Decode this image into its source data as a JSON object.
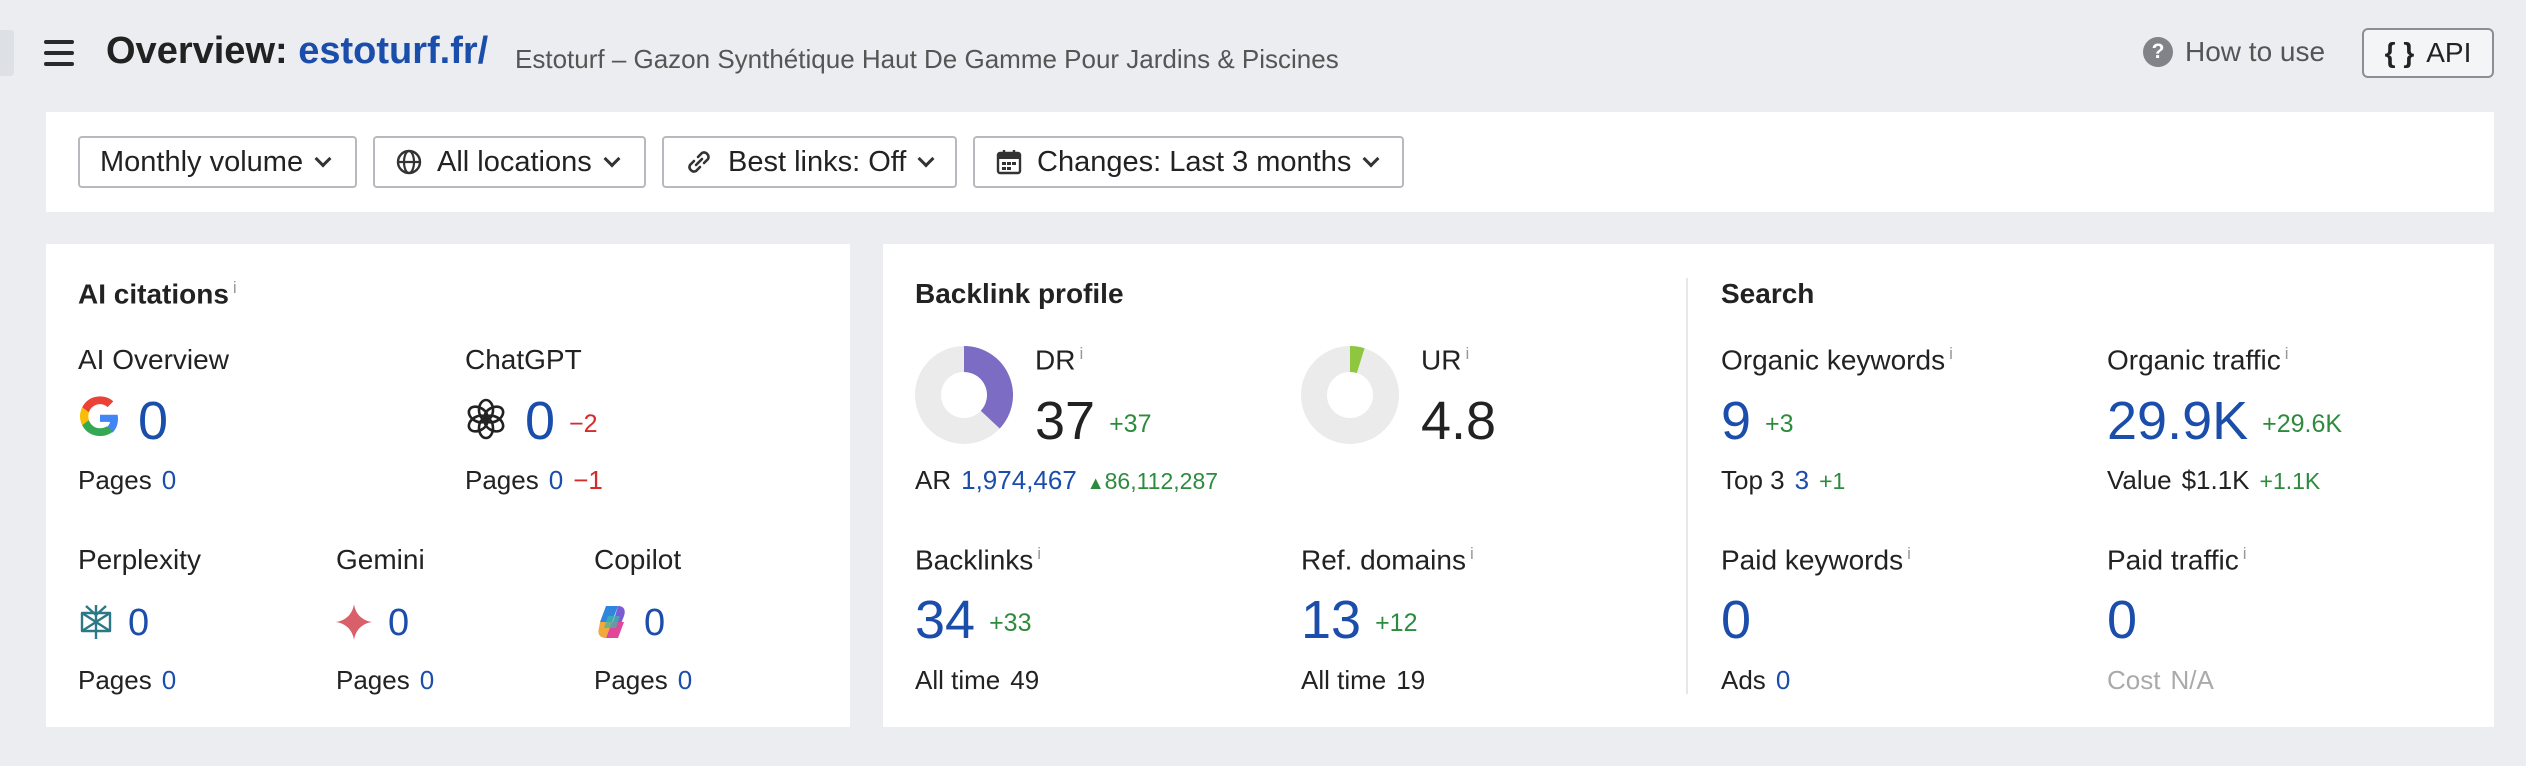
{
  "header": {
    "title_prefix": "Overview: ",
    "domain": "estoturf.fr/",
    "subtitle": "Estoturf – Gazon Synthétique Haut De Gamme Pour Jardins & Piscines",
    "how_to_use": "How to use",
    "api_label": "API",
    "api_braces": "{ }"
  },
  "filters": {
    "volume": "Monthly volume",
    "locations": "All locations",
    "best_links": "Best links: Off",
    "changes": "Changes: Last 3 months"
  },
  "ai_citations": {
    "title": "AI citations",
    "info": "i",
    "overview": {
      "label": "AI Overview",
      "value": "0",
      "pages_label": "Pages",
      "pages": "0"
    },
    "chatgpt": {
      "label": "ChatGPT",
      "value": "0",
      "delta": "−2",
      "pages_label": "Pages",
      "pages": "0",
      "pages_delta": "−1"
    },
    "perplexity": {
      "label": "Perplexity",
      "value": "0",
      "pages_label": "Pages",
      "pages": "0"
    },
    "gemini": {
      "label": "Gemini",
      "value": "0",
      "pages_label": "Pages",
      "pages": "0"
    },
    "copilot": {
      "label": "Copilot",
      "value": "0",
      "pages_label": "Pages",
      "pages": "0"
    }
  },
  "backlink_profile": {
    "title": "Backlink profile",
    "dr": {
      "label": "DR",
      "value": "37",
      "delta": "+37",
      "percent": 37
    },
    "ur": {
      "label": "UR",
      "value": "4.8",
      "percent": 4.8
    },
    "ar": {
      "label": "AR",
      "value": "1,974,467",
      "delta": "86,112,287"
    },
    "backlinks": {
      "label": "Backlinks",
      "value": "34",
      "delta": "+33",
      "all_time_label": "All time",
      "all_time": "49"
    },
    "ref_domains": {
      "label": "Ref. domains",
      "value": "13",
      "delta": "+12",
      "all_time_label": "All time",
      "all_time": "19"
    }
  },
  "search": {
    "title": "Search",
    "organic_keywords": {
      "label": "Organic keywords",
      "value": "9",
      "delta": "+3",
      "top3_label": "Top 3",
      "top3": "3",
      "top3_delta": "+1"
    },
    "organic_traffic": {
      "label": "Organic traffic",
      "value": "29.9K",
      "delta": "+29.6K",
      "value_label": "Value",
      "value_amount": "$1.1K",
      "value_delta": "+1.1K"
    },
    "paid_keywords": {
      "label": "Paid keywords",
      "value": "0",
      "ads_label": "Ads",
      "ads": "0"
    },
    "paid_traffic": {
      "label": "Paid traffic",
      "value": "0",
      "cost_label": "Cost",
      "cost": "N/A"
    }
  },
  "colors": {
    "link_blue": "#1b4dab",
    "green": "#2e8b3e",
    "red": "#d62b2b",
    "donut_purple": "#7c6cc4",
    "donut_green": "#8ec63f",
    "donut_bg": "#ebebeb"
  }
}
